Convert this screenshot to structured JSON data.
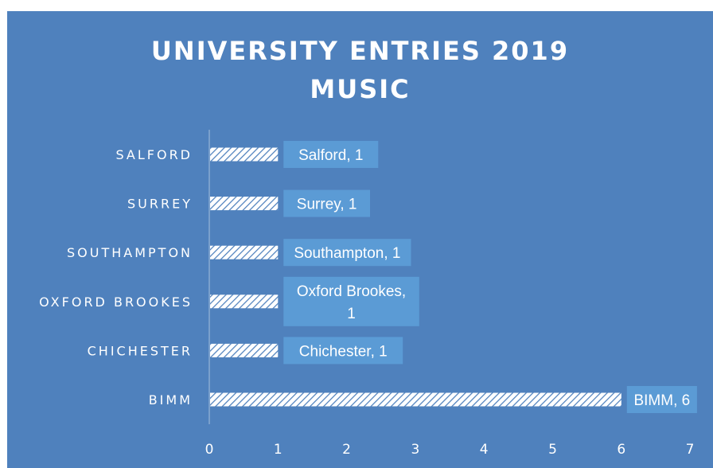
{
  "chart_data": {
    "type": "bar",
    "orientation": "horizontal",
    "title_lines": [
      "UNIVERSITY ENTRIES 2019",
      "MUSIC"
    ],
    "categories": [
      "SALFORD",
      "SURREY",
      "SOUTHAMPTON",
      "OXFORD BROOKES",
      "CHICHESTER",
      "BIMM"
    ],
    "values": [
      1,
      1,
      1,
      1,
      1,
      6
    ],
    "data_labels": [
      [
        "Salford, 1"
      ],
      [
        "Surrey, 1"
      ],
      [
        "Southampton, 1"
      ],
      [
        "Oxford Brookes,",
        "1"
      ],
      [
        "Chichester, 1"
      ],
      [
        "BIMM, 6"
      ]
    ],
    "xlim": [
      0,
      7
    ],
    "xticks": [
      0,
      1,
      2,
      3,
      4,
      5,
      6,
      7
    ],
    "grid": false,
    "legend": "none",
    "colors": {
      "background": "#4f81bd",
      "text": "#ffffff",
      "bar_fill": "#ffffff",
      "bar_hatch": "#4f81bd",
      "label_box": "#5b9bd5"
    }
  }
}
